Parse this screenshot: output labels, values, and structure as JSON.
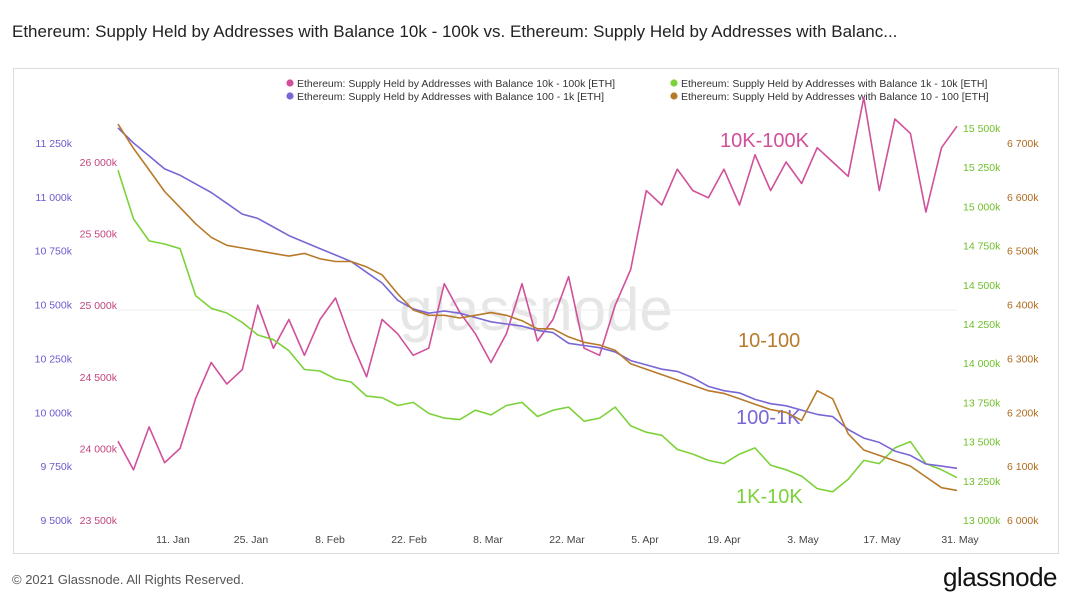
{
  "title": "Ethereum: Supply Held by Addresses with Balance 10k - 100k vs. Ethereum: Supply Held by Addresses with Balanc...",
  "footer": {
    "copyright": "© 2021 Glassnode. All Rights Reserved.",
    "brand": "glassnode"
  },
  "chart_data": {
    "type": "line",
    "watermark": "glassnode",
    "x_labels": [
      "11. Jan",
      "25. Jan",
      "8. Feb",
      "22. Feb",
      "8. Mar",
      "22. Mar",
      "5. Apr",
      "19. Apr",
      "3. May",
      "17. May",
      "31. May"
    ],
    "axes": {
      "a1": {
        "ticks": [
          "9 500k",
          "9 750k",
          "10 000k",
          "10 250k",
          "10 500k",
          "10 750k",
          "11 000k",
          "11 250k"
        ],
        "range": [
          9500000,
          11250000
        ],
        "color": "#6a5acd"
      },
      "a2": {
        "ticks": [
          "23 500k",
          "24 000k",
          "24 500k",
          "25 000k",
          "25 500k",
          "26 000k"
        ],
        "range": [
          23500000,
          26000000
        ],
        "color": "#c2447e"
      },
      "a3": {
        "ticks": [
          "13 000k",
          "13 250k",
          "13 500k",
          "13 750k",
          "14 000k",
          "14 250k",
          "14 500k",
          "14 750k",
          "15 000k",
          "15 250k",
          "15 500k"
        ],
        "range": [
          13000000,
          15500000
        ],
        "color": "#6fbf2a"
      },
      "a4": {
        "ticks": [
          "6 000k",
          "6 100k",
          "6 200k",
          "6 300k",
          "6 400k",
          "6 500k",
          "6 600k",
          "6 700k"
        ],
        "range": [
          6000000,
          6700000
        ],
        "color": "#b06b1e"
      }
    },
    "series": [
      {
        "name": "Ethereum: Supply Held by Addresses with Balance 10k - 100k [ETH]",
        "axis": "a2",
        "color": "#d0509a",
        "label": "10K-100K",
        "values": [
          24050,
          23850,
          24150,
          23900,
          24000,
          24350,
          24600,
          24450,
          24550,
          25000,
          24700,
          24900,
          24650,
          24900,
          25050,
          24750,
          24500,
          24900,
          24800,
          24650,
          24700,
          25150,
          24950,
          24800,
          24600,
          24800,
          25150,
          24750,
          24900,
          25200,
          24700,
          24650,
          25000,
          25250,
          25800,
          25700,
          25950,
          25800,
          25750,
          25950,
          25700,
          26050,
          25800,
          26000,
          25850,
          26100,
          26000,
          25900,
          26450,
          25800,
          26300,
          26200,
          25650,
          26100,
          26250
        ]
      },
      {
        "name": "Ethereum: Supply Held by Addresses with Balance 1k - 10k [ETH]",
        "axis": "a3",
        "color": "#7dd13a",
        "label": "1K-10K",
        "values": [
          15230,
          14920,
          14780,
          14760,
          14730,
          14430,
          14350,
          14320,
          14260,
          14180,
          14150,
          14080,
          13960,
          13950,
          13900,
          13880,
          13790,
          13780,
          13730,
          13750,
          13680,
          13650,
          13640,
          13700,
          13670,
          13730,
          13750,
          13660,
          13700,
          13720,
          13630,
          13650,
          13720,
          13600,
          13560,
          13540,
          13450,
          13420,
          13380,
          13360,
          13420,
          13460,
          13350,
          13320,
          13280,
          13200,
          13180,
          13260,
          13380,
          13360,
          13460,
          13500,
          13360,
          13320,
          13270
        ]
      },
      {
        "name": "Ethereum: Supply Held by Addresses with Balance 100 - 1k [ETH]",
        "axis": "a1",
        "color": "#7a66d4",
        "label": "100-1K",
        "values": [
          11320,
          11250,
          11190,
          11130,
          11100,
          11060,
          11020,
          10970,
          10920,
          10900,
          10860,
          10820,
          10790,
          10760,
          10730,
          10700,
          10650,
          10600,
          10520,
          10480,
          10460,
          10470,
          10460,
          10440,
          10420,
          10410,
          10400,
          10380,
          10370,
          10320,
          10310,
          10300,
          10280,
          10240,
          10220,
          10200,
          10190,
          10160,
          10120,
          10100,
          10090,
          10060,
          10040,
          10030,
          10010,
          9990,
          9980,
          9920,
          9880,
          9860,
          9820,
          9800,
          9760,
          9750,
          9740
        ]
      },
      {
        "name": "Ethereum: Supply Held by Addresses with Balance 10 - 100 [ETH]",
        "axis": "a4",
        "color": "#b87a2a",
        "label": "10-100",
        "values": [
          6735,
          6690,
          6650,
          6610,
          6580,
          6550,
          6525,
          6510,
          6505,
          6500,
          6495,
          6490,
          6495,
          6485,
          6480,
          6480,
          6470,
          6455,
          6420,
          6390,
          6380,
          6380,
          6375,
          6380,
          6385,
          6380,
          6370,
          6355,
          6355,
          6340,
          6330,
          6325,
          6315,
          6290,
          6280,
          6270,
          6260,
          6250,
          6240,
          6235,
          6225,
          6215,
          6205,
          6200,
          6185,
          6240,
          6225,
          6160,
          6130,
          6120,
          6110,
          6100,
          6080,
          6060,
          6055
        ]
      }
    ]
  }
}
